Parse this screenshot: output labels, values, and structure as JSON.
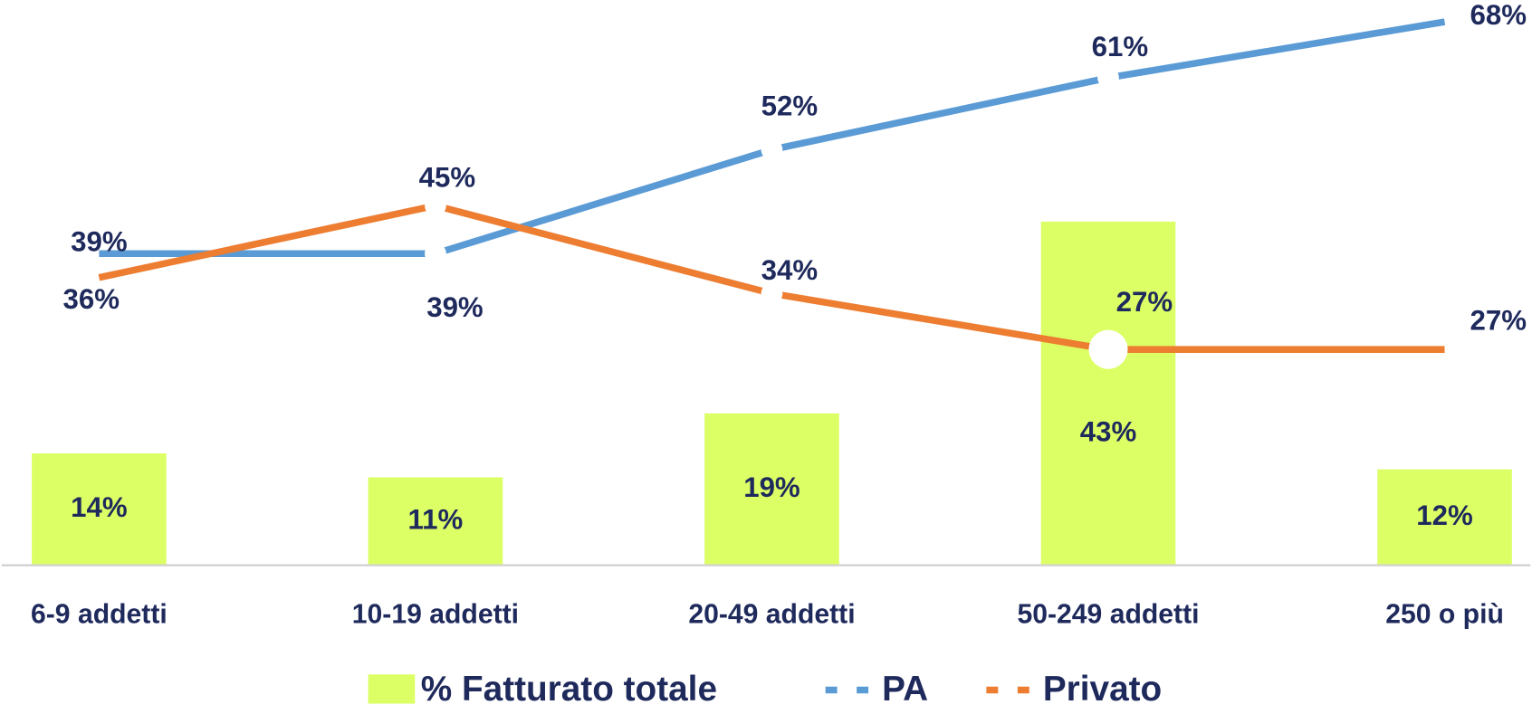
{
  "chart_data": {
    "type": "bar-line",
    "categories": [
      "6-9 addetti",
      "10-19 addetti",
      "20-49 addetti",
      "50-249 addetti",
      "250 o più"
    ],
    "series": [
      {
        "name": "% Fatturato totale",
        "type": "bar",
        "color": "#ddff66",
        "values": [
          14,
          11,
          19,
          43,
          12
        ],
        "value_labels": [
          "14%",
          "11%",
          "19%",
          "43%",
          "12%"
        ]
      },
      {
        "name": "PA",
        "type": "line",
        "color": "#5b9bd5",
        "values": [
          39,
          39,
          52,
          61,
          68
        ],
        "value_labels": [
          "39%",
          "39%",
          "52%",
          "61%",
          "68%"
        ]
      },
      {
        "name": "Privato",
        "type": "line",
        "color": "#ed7d31",
        "values": [
          36,
          45,
          34,
          27,
          27
        ],
        "value_labels": [
          "36%",
          "45%",
          "34%",
          "27%",
          "27%"
        ]
      }
    ],
    "ylim": [
      0,
      70
    ],
    "grid": false,
    "legend": "bottom"
  }
}
